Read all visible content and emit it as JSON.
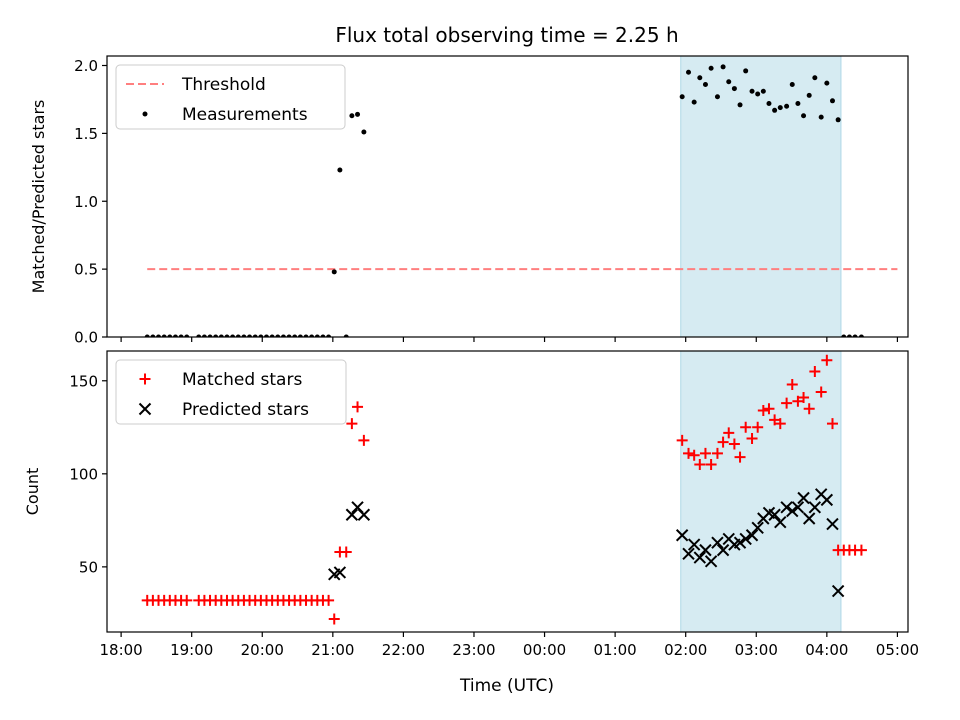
{
  "title": "Flux total observing time = 2.25 h",
  "xlabel": "Time (UTC)",
  "colors": {
    "threshold": "#ff7f7f",
    "measurement": "#000000",
    "matched": "#ff0000",
    "predicted": "#000000",
    "span": "#add8e6"
  },
  "chart_data": [
    {
      "type": "scatter",
      "ylabel": "Matched/Predicted stars",
      "ylim": [
        0,
        2.07
      ],
      "yticks": [
        0.0,
        0.5,
        1.0,
        1.5,
        2.0
      ],
      "ytick_labels": [
        "0.0",
        "0.5",
        "1.0",
        "1.5",
        "2.0"
      ],
      "xlim": [
        17.8,
        29.15
      ],
      "xticks": [
        18,
        19,
        20,
        21,
        22,
        23,
        24,
        25,
        26,
        27,
        28,
        29
      ],
      "xtick_labels": [
        "18:00",
        "19:00",
        "20:00",
        "21:00",
        "22:00",
        "23:00",
        "00:00",
        "01:00",
        "02:00",
        "03:00",
        "04:00",
        "05:00"
      ],
      "show_xtick_labels": false,
      "legend": {
        "placement": "top-left",
        "entries": [
          "Threshold",
          "Measurements"
        ]
      },
      "highlight_span": {
        "x": [
          25.93,
          28.2
        ]
      },
      "threshold": {
        "name": "Threshold",
        "x": [
          18.37,
          29.0
        ],
        "y": 0.5
      },
      "series": [
        {
          "name": "Measurements",
          "marker": "dot",
          "points": [
            [
              18.37,
              0.0
            ],
            [
              18.45,
              0.0
            ],
            [
              18.53,
              0.0
            ],
            [
              18.61,
              0.0
            ],
            [
              18.69,
              0.0
            ],
            [
              18.77,
              0.0
            ],
            [
              18.85,
              0.0
            ],
            [
              18.93,
              0.0
            ],
            [
              19.1,
              0.0
            ],
            [
              19.18,
              0.0
            ],
            [
              19.26,
              0.0
            ],
            [
              19.34,
              0.0
            ],
            [
              19.42,
              0.0
            ],
            [
              19.5,
              0.0
            ],
            [
              19.58,
              0.0
            ],
            [
              19.66,
              0.0
            ],
            [
              19.74,
              0.0
            ],
            [
              19.82,
              0.0
            ],
            [
              19.9,
              0.0
            ],
            [
              19.98,
              0.0
            ],
            [
              20.06,
              0.0
            ],
            [
              20.14,
              0.0
            ],
            [
              20.22,
              0.0
            ],
            [
              20.3,
              0.0
            ],
            [
              20.38,
              0.0
            ],
            [
              20.46,
              0.0
            ],
            [
              20.54,
              0.0
            ],
            [
              20.62,
              0.0
            ],
            [
              20.7,
              0.0
            ],
            [
              20.78,
              0.0
            ],
            [
              20.86,
              0.0
            ],
            [
              20.94,
              0.0
            ],
            [
              21.02,
              0.48
            ],
            [
              21.1,
              1.23
            ],
            [
              21.19,
              0.0
            ],
            [
              21.27,
              1.63
            ],
            [
              21.35,
              1.64
            ],
            [
              21.44,
              1.51
            ],
            [
              25.95,
              1.77
            ],
            [
              26.04,
              1.95
            ],
            [
              26.12,
              1.73
            ],
            [
              26.2,
              1.91
            ],
            [
              26.28,
              1.86
            ],
            [
              26.36,
              1.98
            ],
            [
              26.45,
              1.77
            ],
            [
              26.53,
              1.99
            ],
            [
              26.61,
              1.88
            ],
            [
              26.69,
              1.83
            ],
            [
              26.77,
              1.71
            ],
            [
              26.85,
              1.96
            ],
            [
              26.94,
              1.81
            ],
            [
              27.02,
              1.79
            ],
            [
              27.1,
              1.81
            ],
            [
              27.18,
              1.72
            ],
            [
              27.26,
              1.67
            ],
            [
              27.34,
              1.69
            ],
            [
              27.43,
              1.7
            ],
            [
              27.51,
              1.86
            ],
            [
              27.59,
              1.72
            ],
            [
              27.67,
              1.63
            ],
            [
              27.75,
              1.78
            ],
            [
              27.83,
              1.91
            ],
            [
              27.92,
              1.62
            ],
            [
              28.0,
              1.87
            ],
            [
              28.08,
              1.74
            ],
            [
              28.16,
              1.6
            ],
            [
              28.24,
              0.0
            ],
            [
              28.32,
              0.0
            ],
            [
              28.4,
              0.0
            ],
            [
              28.49,
              0.0
            ]
          ]
        }
      ]
    },
    {
      "type": "scatter",
      "ylabel": "Count",
      "ylim": [
        15,
        166
      ],
      "yticks": [
        50,
        100,
        150
      ],
      "ytick_labels": [
        "50",
        "100",
        "150"
      ],
      "xlim": [
        17.8,
        29.15
      ],
      "xticks": [
        18,
        19,
        20,
        21,
        22,
        23,
        24,
        25,
        26,
        27,
        28,
        29
      ],
      "xtick_labels": [
        "18:00",
        "19:00",
        "20:00",
        "21:00",
        "22:00",
        "23:00",
        "00:00",
        "01:00",
        "02:00",
        "03:00",
        "04:00",
        "05:00"
      ],
      "show_xtick_labels": true,
      "legend": {
        "placement": "top-left",
        "entries": [
          "Matched stars",
          "Predicted stars"
        ]
      },
      "highlight_span": {
        "x": [
          25.93,
          28.2
        ]
      },
      "series": [
        {
          "name": "Matched stars",
          "marker": "plus",
          "points": [
            [
              18.37,
              32
            ],
            [
              18.45,
              32
            ],
            [
              18.53,
              32
            ],
            [
              18.61,
              32
            ],
            [
              18.69,
              32
            ],
            [
              18.77,
              32
            ],
            [
              18.85,
              32
            ],
            [
              18.93,
              32
            ],
            [
              19.1,
              32
            ],
            [
              19.18,
              32
            ],
            [
              19.26,
              32
            ],
            [
              19.34,
              32
            ],
            [
              19.42,
              32
            ],
            [
              19.5,
              32
            ],
            [
              19.58,
              32
            ],
            [
              19.66,
              32
            ],
            [
              19.74,
              32
            ],
            [
              19.82,
              32
            ],
            [
              19.9,
              32
            ],
            [
              19.98,
              32
            ],
            [
              20.06,
              32
            ],
            [
              20.14,
              32
            ],
            [
              20.22,
              32
            ],
            [
              20.3,
              32
            ],
            [
              20.38,
              32
            ],
            [
              20.46,
              32
            ],
            [
              20.54,
              32
            ],
            [
              20.62,
              32
            ],
            [
              20.7,
              32
            ],
            [
              20.78,
              32
            ],
            [
              20.86,
              32
            ],
            [
              20.94,
              32
            ],
            [
              21.02,
              22
            ],
            [
              21.1,
              58
            ],
            [
              21.19,
              58
            ],
            [
              21.27,
              127
            ],
            [
              21.35,
              136
            ],
            [
              21.44,
              118
            ],
            [
              25.95,
              118
            ],
            [
              26.04,
              111
            ],
            [
              26.12,
              110
            ],
            [
              26.2,
              105
            ],
            [
              26.28,
              111
            ],
            [
              26.36,
              105
            ],
            [
              26.45,
              111
            ],
            [
              26.53,
              117
            ],
            [
              26.61,
              122
            ],
            [
              26.69,
              116
            ],
            [
              26.77,
              109
            ],
            [
              26.85,
              125
            ],
            [
              26.94,
              119
            ],
            [
              27.02,
              125
            ],
            [
              27.1,
              134
            ],
            [
              27.18,
              135
            ],
            [
              27.26,
              129
            ],
            [
              27.34,
              127
            ],
            [
              27.43,
              138
            ],
            [
              27.51,
              148
            ],
            [
              27.59,
              139
            ],
            [
              27.67,
              141
            ],
            [
              27.75,
              135
            ],
            [
              27.83,
              155
            ],
            [
              27.92,
              144
            ],
            [
              28.0,
              161
            ],
            [
              28.08,
              127
            ],
            [
              28.16,
              59
            ],
            [
              28.24,
              59
            ],
            [
              28.32,
              59
            ],
            [
              28.4,
              59
            ],
            [
              28.49,
              59
            ]
          ]
        },
        {
          "name": "Predicted stars",
          "marker": "x",
          "points": [
            [
              21.02,
              46
            ],
            [
              21.1,
              47
            ],
            [
              21.27,
              78
            ],
            [
              21.35,
              82
            ],
            [
              21.44,
              78
            ],
            [
              25.95,
              67
            ],
            [
              26.04,
              57
            ],
            [
              26.12,
              62
            ],
            [
              26.2,
              55
            ],
            [
              26.28,
              59
            ],
            [
              26.36,
              53
            ],
            [
              26.45,
              63
            ],
            [
              26.53,
              59
            ],
            [
              26.61,
              65
            ],
            [
              26.69,
              62
            ],
            [
              26.77,
              63
            ],
            [
              26.85,
              65
            ],
            [
              26.94,
              67
            ],
            [
              27.02,
              71
            ],
            [
              27.1,
              76
            ],
            [
              27.18,
              79
            ],
            [
              27.26,
              78
            ],
            [
              27.34,
              74
            ],
            [
              27.43,
              82
            ],
            [
              27.51,
              80
            ],
            [
              27.59,
              82
            ],
            [
              27.67,
              87
            ],
            [
              27.75,
              76
            ],
            [
              27.83,
              82
            ],
            [
              27.92,
              89
            ],
            [
              28.0,
              86
            ],
            [
              28.08,
              73
            ],
            [
              28.16,
              37
            ]
          ]
        }
      ]
    }
  ]
}
